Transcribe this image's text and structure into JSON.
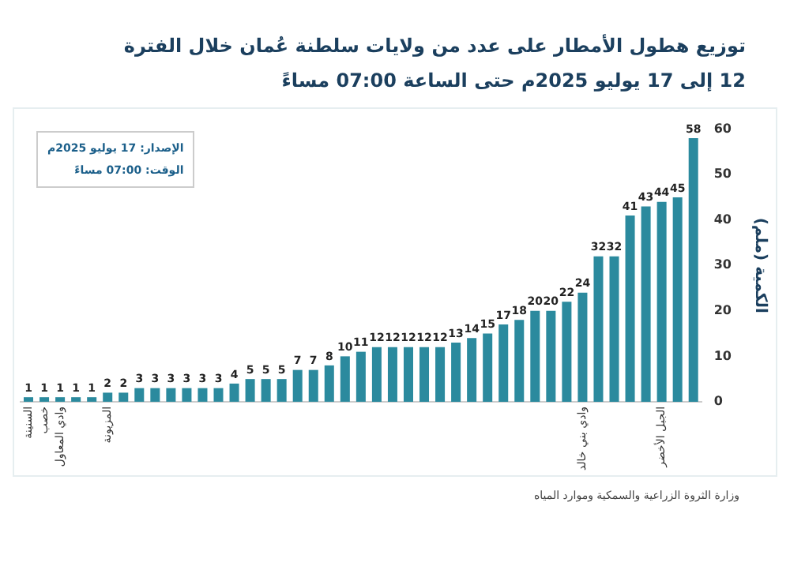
{
  "chart_data": {
    "type": "bar",
    "title": "توزيع هطول الأمطار على عدد من ولايات سلطنة عُمان خلال الفترة",
    "subtitle": "12 إلى 17 يوليو 2025م حتى الساعة 07:00 مساءً",
    "ylabel": "الكمية (ملم)",
    "categories": [
      "السنينة",
      "خصب",
      "وادي المعاول",
      null,
      null,
      "المزيونة",
      null,
      null,
      null,
      null,
      null,
      null,
      null,
      null,
      null,
      null,
      null,
      null,
      null,
      null,
      null,
      null,
      null,
      null,
      null,
      null,
      null,
      null,
      null,
      null,
      null,
      null,
      null,
      null,
      null,
      "وادي بني خالد",
      null,
      null,
      null,
      null,
      "الجبل الأخضر",
      null,
      null
    ],
    "values": [
      1,
      1,
      1,
      1,
      1,
      2,
      2,
      3,
      3,
      3,
      3,
      3,
      3,
      4,
      5,
      5,
      5,
      7,
      7,
      8,
      10,
      11,
      12,
      12,
      12,
      12,
      12,
      13,
      14,
      15,
      17,
      18,
      20,
      20,
      22,
      24,
      32,
      32,
      41,
      43,
      44,
      45,
      58
    ],
    "color": "#2b8a9e",
    "ylim": [
      0,
      60
    ],
    "yticks": [
      0,
      10,
      20,
      30,
      40,
      50,
      60
    ],
    "grid": false,
    "data_labels": true,
    "annotations": [
      "الإصدار: 17 يوليو 2025م",
      "الوقت: 07:00 مساءً",
      "وزارة الثروة الزراعية والسمكية وموارد المياه"
    ]
  }
}
